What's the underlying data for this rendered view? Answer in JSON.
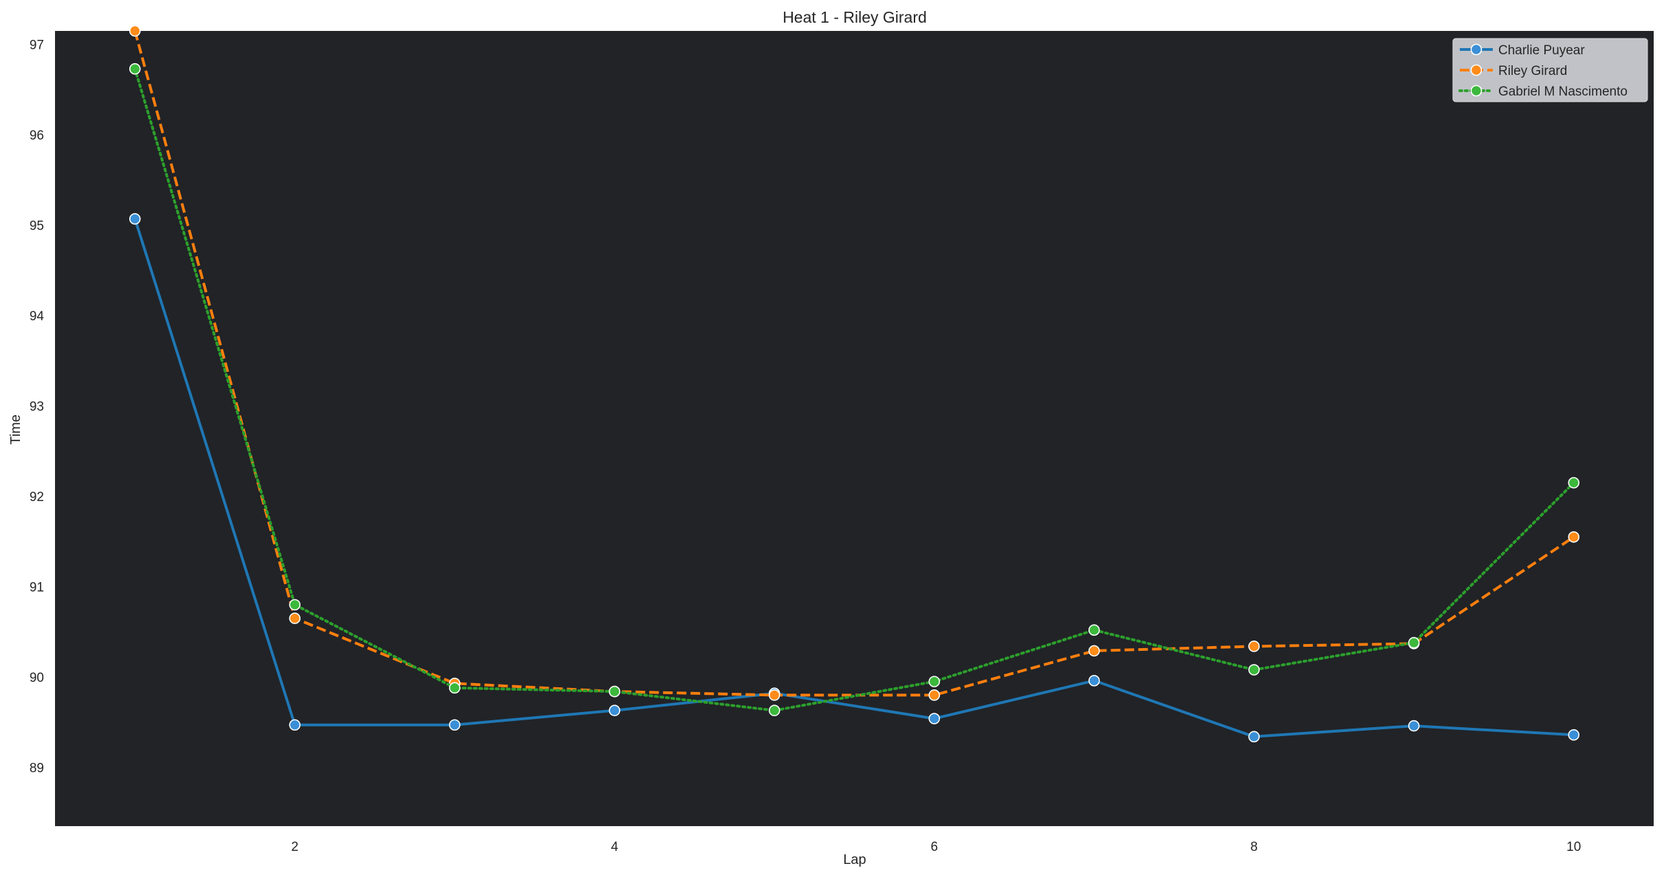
{
  "chart_data": {
    "type": "line",
    "title": "Heat 1 - Riley Girard",
    "xlabel": "Lap",
    "ylabel": "Time",
    "xlim": [
      0.5,
      10.5
    ],
    "ylim": [
      88.35,
      97.15
    ],
    "xticks": [
      2,
      4,
      6,
      8,
      10
    ],
    "yticks": [
      89,
      90,
      91,
      92,
      93,
      94,
      95,
      96,
      97
    ],
    "grid": false,
    "plot_background": "#212327",
    "legend_position": "top-right",
    "x": [
      1,
      2,
      3,
      4,
      5,
      6,
      7,
      8,
      9,
      10
    ],
    "series": [
      {
        "name": "Charlie Puyear",
        "color": "#1f77b4",
        "marker_fill": "#3a8fd6",
        "line_style": "solid",
        "values": [
          95.07,
          89.47,
          89.47,
          89.63,
          89.82,
          89.54,
          89.96,
          89.34,
          89.46,
          89.36
        ]
      },
      {
        "name": "Riley Girard",
        "color": "#ff7f0e",
        "marker_fill": "#ff8c1a",
        "line_style": "dashed",
        "values": [
          97.15,
          90.65,
          89.93,
          89.84,
          89.8,
          89.8,
          90.29,
          90.34,
          90.37,
          91.55
        ]
      },
      {
        "name": "Gabriel M Nascimento",
        "color": "#2ca02c",
        "marker_fill": "#3cb83c",
        "line_style": "dotted",
        "values": [
          96.73,
          90.8,
          89.88,
          89.84,
          89.63,
          89.95,
          90.52,
          90.08,
          90.38,
          92.15
        ]
      }
    ]
  }
}
